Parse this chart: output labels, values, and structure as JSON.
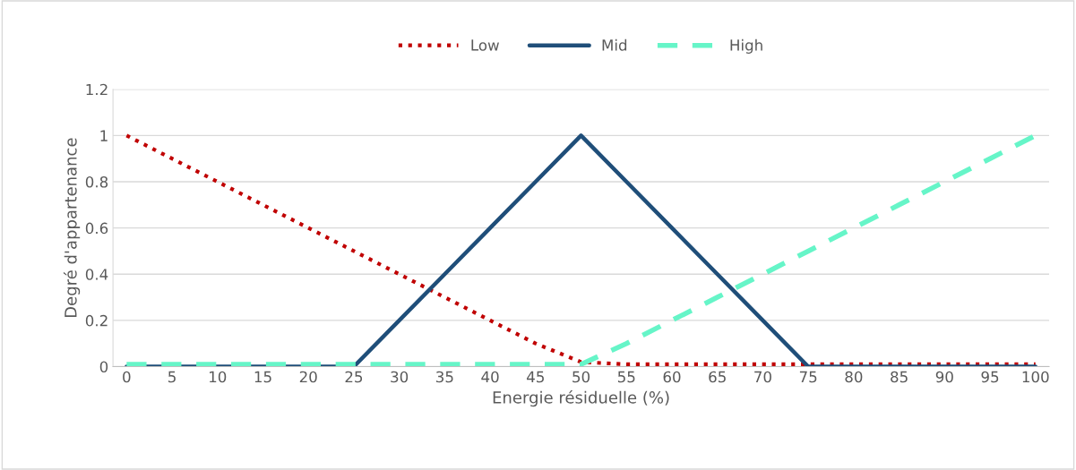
{
  "chart_data": {
    "type": "line",
    "xlabel": "Energie résiduelle (%)",
    "ylabel": "Degré d'appartenance",
    "categories": [
      "0",
      "5",
      "10",
      "15",
      "20",
      "25",
      "30",
      "35",
      "40",
      "45",
      "50",
      "55",
      "60",
      "65",
      "70",
      "75",
      "80",
      "85",
      "90",
      "95",
      "100"
    ],
    "series": [
      {
        "name": "Low",
        "color": "#c00000",
        "line_style": "dotted",
        "values": [
          1,
          0.9,
          0.8,
          0.7,
          0.6,
          0.5,
          0.4,
          0.3,
          0.2,
          0.1,
          0.02,
          0.01,
          0.01,
          0.01,
          0.01,
          0.01,
          0.01,
          0.01,
          0.01,
          0.01,
          0.01
        ]
      },
      {
        "name": "Mid",
        "color": "#1f4e79",
        "line_style": "solid",
        "values": [
          0,
          0,
          0,
          0,
          0,
          0,
          0.2,
          0.4,
          0.6,
          0.8,
          1,
          0.8,
          0.6,
          0.4,
          0.2,
          0,
          0,
          0,
          0,
          0,
          0
        ]
      },
      {
        "name": "High",
        "color": "#66f5c8",
        "line_style": "dashed",
        "values": [
          0.01,
          0.01,
          0.01,
          0.01,
          0.01,
          0.01,
          0.01,
          0.01,
          0.01,
          0.01,
          0.01,
          0.1,
          0.2,
          0.3,
          0.4,
          0.5,
          0.6,
          0.7,
          0.8,
          0.9,
          1
        ]
      }
    ],
    "ylim": [
      0,
      1.2
    ],
    "yticks": [
      0,
      0.2,
      0.4,
      0.6,
      0.8,
      1,
      1.2
    ],
    "grid": "y",
    "legend": "top",
    "marker": "none"
  }
}
